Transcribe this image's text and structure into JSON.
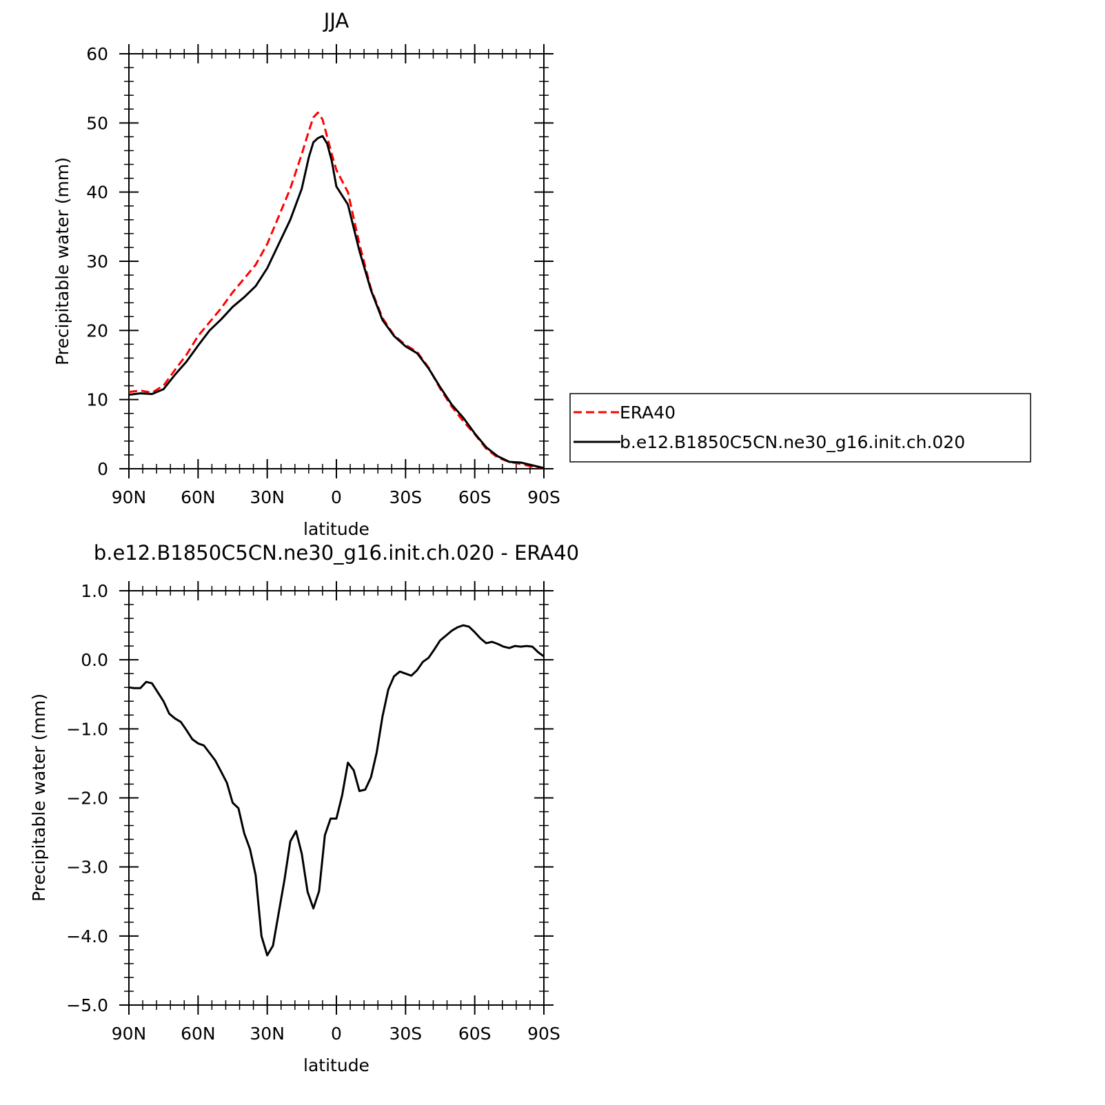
{
  "chart_data": [
    {
      "type": "line",
      "title": "JJA",
      "xlabel": "latitude",
      "ylabel": "Precipitable water (mm)",
      "xlim": [
        90,
        -90
      ],
      "ylim": [
        0,
        60
      ],
      "x_tick_values": [
        90,
        60,
        30,
        0,
        -30,
        -60,
        -90
      ],
      "x_tick_labels": [
        "90N",
        "60N",
        "30N",
        "0",
        "30S",
        "60S",
        "90S"
      ],
      "y_tick_values": [
        0,
        10,
        20,
        30,
        40,
        50,
        60
      ],
      "y_tick_labels": [
        "0",
        "10",
        "20",
        "30",
        "40",
        "50",
        "60"
      ],
      "grid": false,
      "legend": {
        "placement": "right"
      },
      "series": [
        {
          "name": "ERA40",
          "color": "#ff0000",
          "dash": "dashed",
          "x": [
            90,
            85,
            80,
            75,
            70,
            65,
            60,
            55,
            50,
            45,
            40,
            35,
            30,
            25,
            20,
            15,
            12,
            10,
            8,
            6,
            4,
            2,
            0,
            -5,
            -10,
            -15,
            -20,
            -25,
            -30,
            -35,
            -40,
            -45,
            -50,
            -55,
            -60,
            -65,
            -70,
            -75,
            -80,
            -85,
            -90
          ],
          "values": [
            11.1,
            11.3,
            11.0,
            12.0,
            14.3,
            16.5,
            19.2,
            21.2,
            23.2,
            25.5,
            27.5,
            29.5,
            32.5,
            36.5,
            40.5,
            45.5,
            48.8,
            50.8,
            51.5,
            50.5,
            48.0,
            45.5,
            43.2,
            40.0,
            32.5,
            26.0,
            21.8,
            19.3,
            17.9,
            16.9,
            14.6,
            11.6,
            9.0,
            6.9,
            5.0,
            2.9,
            1.6,
            1.0,
            0.7,
            0.3,
            0.1
          ]
        },
        {
          "name": "b.e12.B1850C5CN.ne30_g16.init.ch.020",
          "color": "#000000",
          "dash": "solid",
          "x": [
            90,
            85,
            80,
            75,
            70,
            65,
            60,
            55,
            50,
            45,
            40,
            35,
            30,
            25,
            20,
            15,
            12,
            10,
            8,
            6,
            4,
            2,
            0,
            -5,
            -10,
            -15,
            -20,
            -25,
            -30,
            -35,
            -40,
            -45,
            -50,
            -55,
            -60,
            -65,
            -70,
            -75,
            -80,
            -85,
            -90
          ],
          "values": [
            10.7,
            10.9,
            10.8,
            11.5,
            13.6,
            15.5,
            17.8,
            20.0,
            21.6,
            23.4,
            24.8,
            26.4,
            29.0,
            32.5,
            36.0,
            40.5,
            45.0,
            47.2,
            47.8,
            48.1,
            47.0,
            44.5,
            40.8,
            38.2,
            31.5,
            25.8,
            21.5,
            19.2,
            17.7,
            16.7,
            14.5,
            11.8,
            9.3,
            7.4,
            5.1,
            3.1,
            1.8,
            1.0,
            0.9,
            0.5,
            0.1
          ]
        }
      ]
    },
    {
      "type": "line",
      "title": "b.e12.B1850C5CN.ne30_g16.init.ch.020 - ERA40",
      "xlabel": "latitude",
      "ylabel": "Precipitable water (mm)",
      "xlim": [
        90,
        -90
      ],
      "ylim": [
        -5.0,
        1.0
      ],
      "x_tick_values": [
        90,
        60,
        30,
        0,
        -30,
        -60,
        -90
      ],
      "x_tick_labels": [
        "90N",
        "60N",
        "30N",
        "0",
        "30S",
        "60S",
        "90S"
      ],
      "y_tick_values": [
        -5.0,
        -4.0,
        -3.0,
        -2.0,
        -1.0,
        0.0,
        1.0
      ],
      "y_tick_labels": [
        "-5.0",
        "-4.0",
        "-3.0",
        "-2.0",
        "-1.0",
        "0.0",
        "1.0"
      ],
      "grid": false,
      "series": [
        {
          "color": "#000000",
          "dash": "solid",
          "x": [
            90,
            88,
            85,
            82.5,
            80,
            77.5,
            75,
            72.5,
            70,
            67.5,
            65,
            62.5,
            60,
            57.5,
            55,
            52.5,
            50,
            47.5,
            45,
            42.5,
            40,
            37.5,
            35,
            32.5,
            30,
            27.5,
            25,
            22.5,
            20,
            17.5,
            15,
            12.5,
            10,
            7.5,
            5,
            2.5,
            0,
            -2.5,
            -5,
            -7.5,
            -10,
            -12.5,
            -15,
            -17.5,
            -20,
            -22.5,
            -25,
            -27.5,
            -30,
            -32.5,
            -35,
            -37.5,
            -40,
            -42.5,
            -45,
            -47.5,
            -50,
            -52.5,
            -55,
            -57.5,
            -60,
            -62.5,
            -65,
            -67.5,
            -70,
            -72.5,
            -75,
            -77.5,
            -80,
            -82.5,
            -85,
            -87.5,
            -90
          ],
          "values": [
            -0.4,
            -0.41,
            -0.41,
            -0.32,
            -0.34,
            -0.47,
            -0.6,
            -0.78,
            -0.85,
            -0.9,
            -1.02,
            -1.15,
            -1.21,
            -1.24,
            -1.35,
            -1.46,
            -1.62,
            -1.78,
            -2.07,
            -2.15,
            -2.51,
            -2.74,
            -3.12,
            -4.0,
            -4.28,
            -4.14,
            -3.66,
            -3.18,
            -2.63,
            -2.48,
            -2.81,
            -3.36,
            -3.6,
            -3.35,
            -2.54,
            -2.3,
            -2.3,
            -1.96,
            -1.49,
            -1.6,
            -1.9,
            -1.88,
            -1.7,
            -1.34,
            -0.82,
            -0.43,
            -0.24,
            -0.17,
            -0.2,
            -0.23,
            -0.15,
            -0.03,
            0.03,
            0.15,
            0.28,
            0.35,
            0.42,
            0.47,
            0.5,
            0.48,
            0.4,
            0.31,
            0.24,
            0.26,
            0.23,
            0.19,
            0.17,
            0.2,
            0.19,
            0.2,
            0.19,
            0.11,
            0.05
          ]
        }
      ]
    }
  ]
}
